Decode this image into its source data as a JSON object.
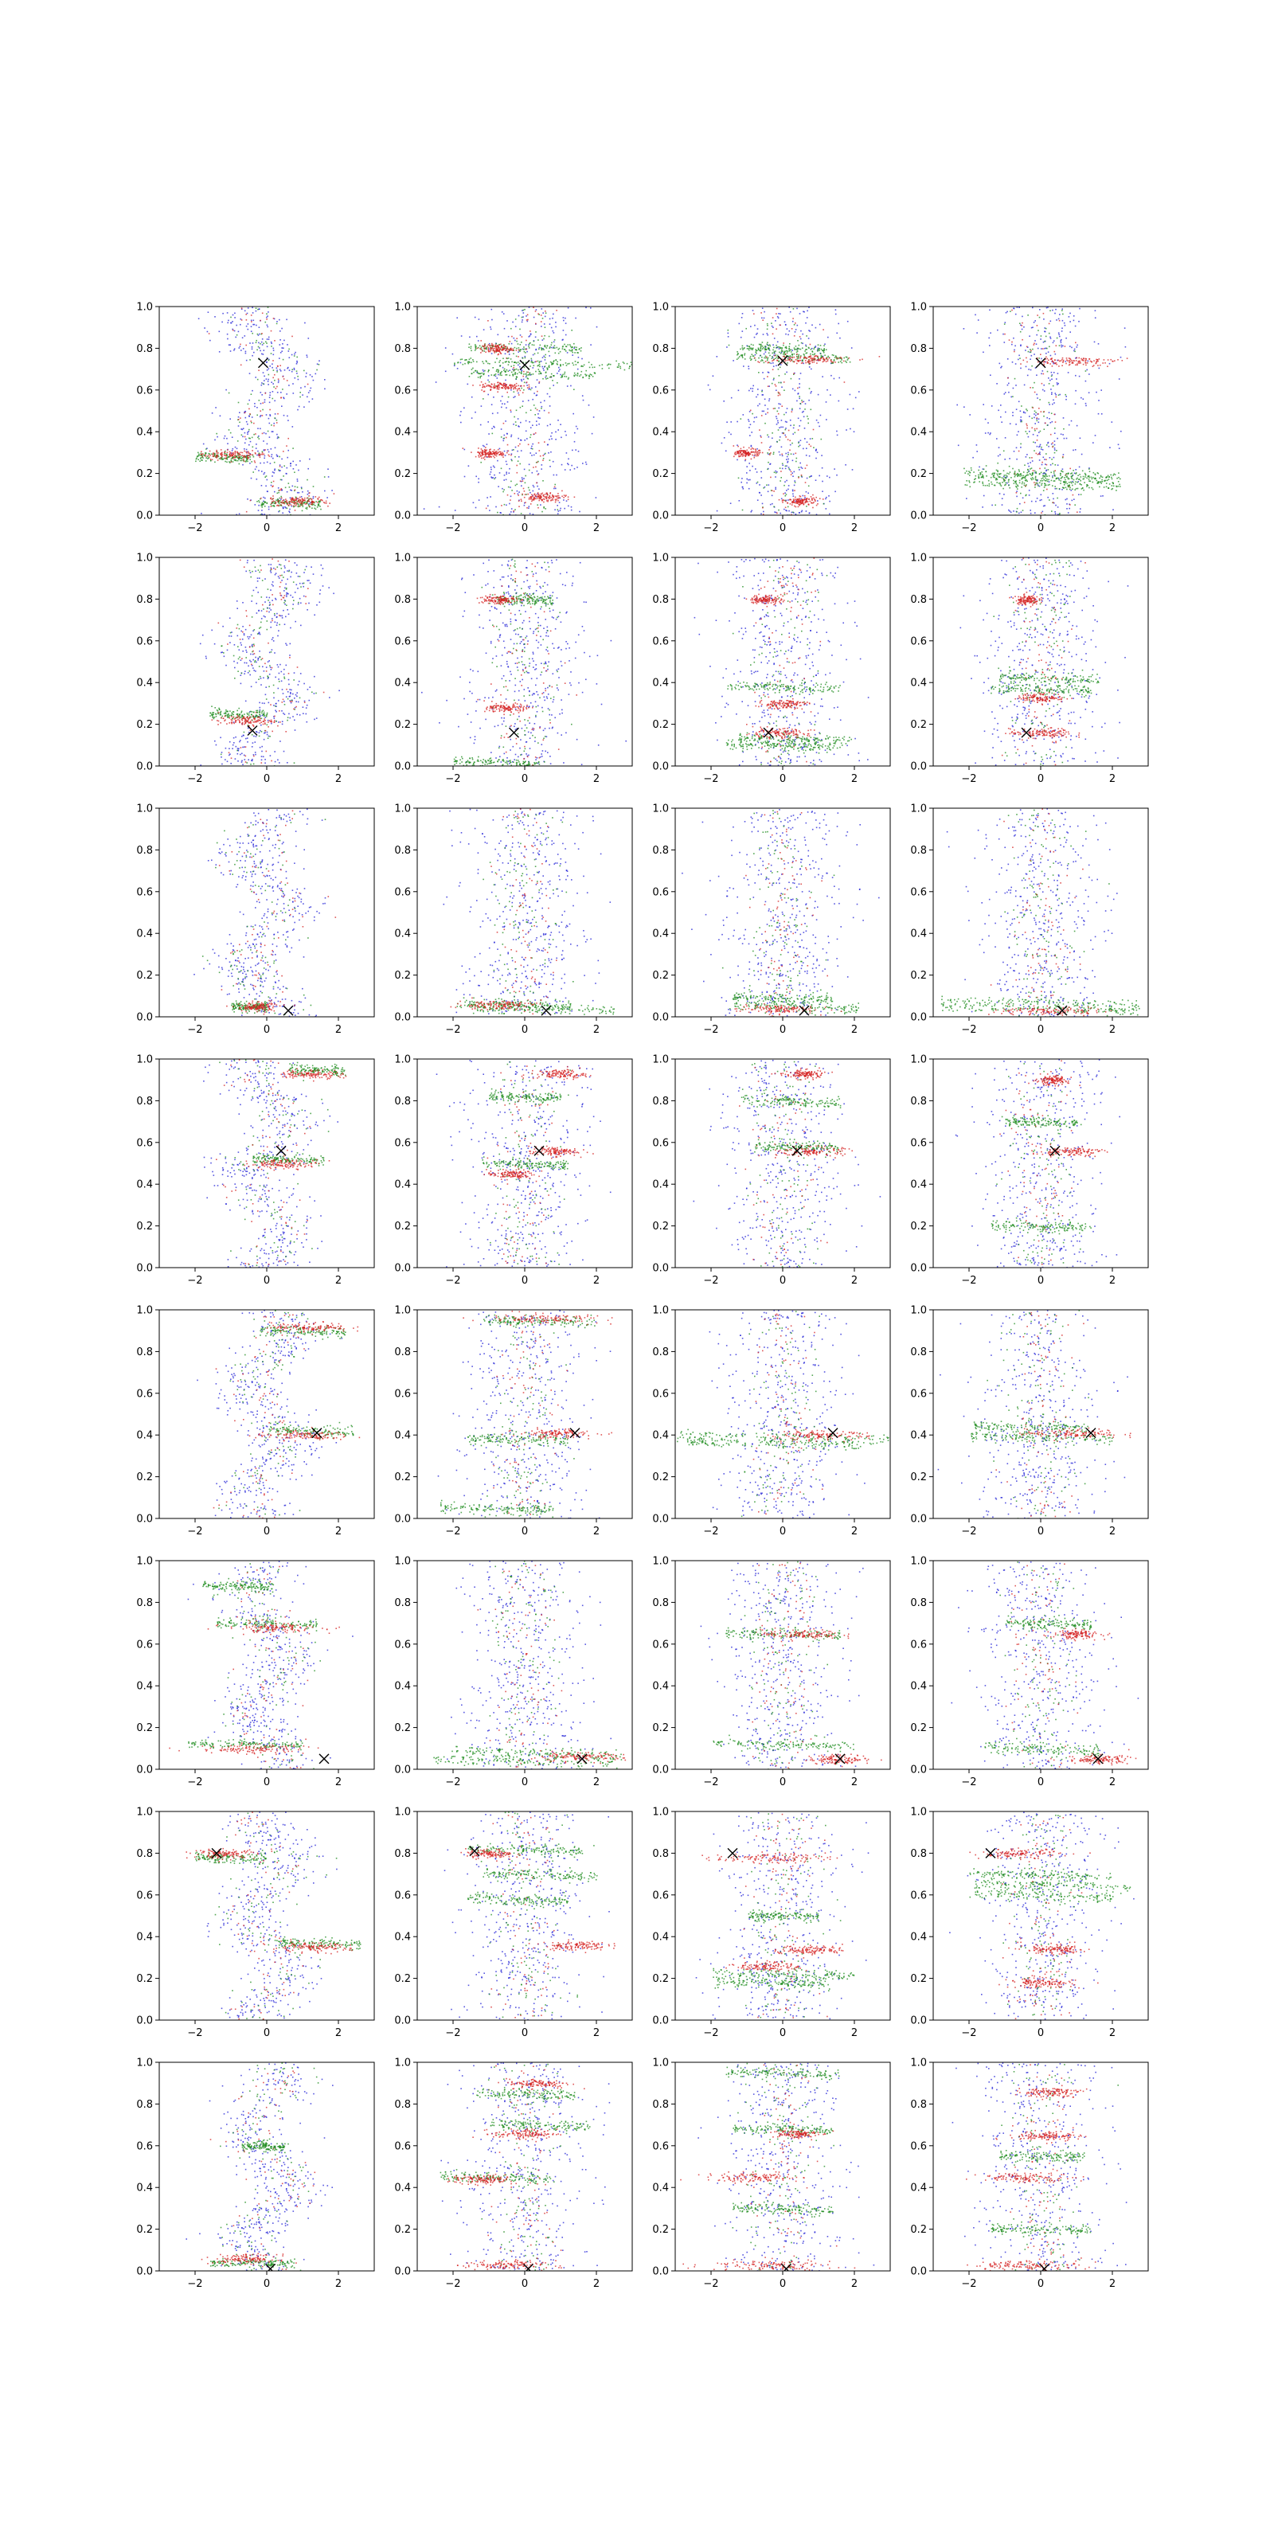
{
  "figure": {
    "rows": 8,
    "cols": 4,
    "description_note": "Grid of scatter subplots; each shows blue, green and red point clouds with a black X marker."
  },
  "colors": {
    "blue": "#1f1fd6",
    "green": "#1a8a1a",
    "red": "#d42020",
    "marker": "#000000",
    "axis": "#000000",
    "background": "#ffffff"
  },
  "chart_data": {
    "type": "scatter",
    "xlim": [
      -3,
      3
    ],
    "ylim": [
      0,
      1
    ],
    "xticks": [
      -2,
      0,
      2
    ],
    "xtick_labels": [
      "−2",
      "0",
      "2"
    ],
    "yticks": [
      0,
      0.2,
      0.4,
      0.6,
      0.8,
      1.0
    ],
    "ytick_labels": [
      "0.0",
      "0.2",
      "0.4",
      "0.6",
      "0.8",
      "1.0"
    ],
    "series_names": [
      "blue",
      "green",
      "red"
    ],
    "panels": [
      {
        "row": 0,
        "col": 0,
        "marker": [
          -0.1,
          0.73
        ],
        "green_bands": [
          [
            0.28,
            -1.2,
            0.8
          ],
          [
            0.06,
            0.6,
            0.9
          ]
        ],
        "red_bands": [
          [
            0.29,
            -1.0,
            0.8
          ],
          [
            0.07,
            0.8,
            0.8
          ]
        ],
        "blue": "mix",
        "sine": true
      },
      {
        "row": 0,
        "col": 1,
        "marker": [
          0.0,
          0.72
        ],
        "green_bands": [
          [
            0.73,
            0.5,
            2.5
          ],
          [
            0.8,
            0.0,
            1.6
          ],
          [
            0.68,
            0.2,
            1.8
          ]
        ],
        "red_bands": [
          [
            0.62,
            -0.6,
            0.6
          ],
          [
            0.3,
            -1.0,
            0.4
          ],
          [
            0.09,
            0.5,
            0.6
          ],
          [
            0.8,
            -0.8,
            0.4
          ]
        ],
        "blue": "mix"
      },
      {
        "row": 0,
        "col": 2,
        "marker": [
          0.0,
          0.74
        ],
        "green_bands": [
          [
            0.8,
            0.0,
            1.2
          ],
          [
            0.76,
            0.3,
            1.6
          ]
        ],
        "red_bands": [
          [
            0.75,
            0.5,
            1.2
          ],
          [
            0.3,
            -1.0,
            0.3
          ],
          [
            0.07,
            0.5,
            0.4
          ]
        ],
        "blue": "mix"
      },
      {
        "row": 0,
        "col": 3,
        "marker": [
          0.0,
          0.73
        ],
        "green_bands": [
          [
            0.2,
            0.0,
            2.2
          ],
          [
            0.15,
            0.0,
            2.2
          ],
          [
            0.18,
            0.2,
            2.0
          ]
        ],
        "red_bands": [
          [
            0.74,
            0.8,
            1.2
          ]
        ],
        "blue": "mix"
      },
      {
        "row": 1,
        "col": 0,
        "marker": [
          -0.4,
          0.17
        ],
        "green_bands": [
          [
            0.25,
            -0.8,
            0.8
          ]
        ],
        "red_bands": [
          [
            0.22,
            -0.6,
            0.7
          ]
        ],
        "blue": "mix",
        "sine": true
      },
      {
        "row": 1,
        "col": 1,
        "marker": [
          -0.3,
          0.16
        ],
        "green_bands": [
          [
            0.02,
            -0.8,
            1.2
          ],
          [
            0.8,
            0.0,
            0.8
          ]
        ],
        "red_bands": [
          [
            0.8,
            -0.8,
            0.5
          ],
          [
            0.28,
            -0.5,
            0.5
          ]
        ],
        "blue": "mix",
        "vertical": true
      },
      {
        "row": 1,
        "col": 2,
        "marker": [
          -0.4,
          0.16
        ],
        "green_bands": [
          [
            0.13,
            0.3,
            1.6
          ],
          [
            0.38,
            0.0,
            1.6
          ],
          [
            0.1,
            0.0,
            1.6
          ]
        ],
        "red_bands": [
          [
            0.8,
            -0.5,
            0.4
          ],
          [
            0.3,
            0.0,
            0.6
          ],
          [
            0.16,
            -0.2,
            0.8
          ]
        ],
        "blue": "mix",
        "vertical": true
      },
      {
        "row": 1,
        "col": 3,
        "marker": [
          -0.4,
          0.16
        ],
        "green_bands": [
          [
            0.42,
            0.2,
            1.4
          ],
          [
            0.37,
            0.0,
            1.4
          ]
        ],
        "red_bands": [
          [
            0.16,
            0.0,
            0.8
          ],
          [
            0.33,
            0.0,
            0.6
          ],
          [
            0.8,
            -0.4,
            0.3
          ]
        ],
        "blue": "mix",
        "vertical": true
      },
      {
        "row": 2,
        "col": 0,
        "marker": [
          0.6,
          0.03
        ],
        "green_bands": [
          [
            0.05,
            -0.5,
            0.5
          ]
        ],
        "red_bands": [
          [
            0.05,
            -0.3,
            0.5
          ]
        ],
        "blue": "mix",
        "sine": true
      },
      {
        "row": 2,
        "col": 1,
        "marker": [
          0.6,
          0.03
        ],
        "green_bands": [
          [
            0.04,
            0.5,
            2.0
          ],
          [
            0.06,
            -0.3,
            1.6
          ]
        ],
        "red_bands": [
          [
            0.06,
            -0.8,
            1.0
          ]
        ],
        "blue": "mix"
      },
      {
        "row": 2,
        "col": 2,
        "marker": [
          0.6,
          0.03
        ],
        "green_bands": [
          [
            0.05,
            0.3,
            1.8
          ],
          [
            0.09,
            0.0,
            1.4
          ]
        ],
        "red_bands": [
          [
            0.04,
            -0.2,
            1.0
          ]
        ],
        "blue": "mix"
      },
      {
        "row": 2,
        "col": 3,
        "marker": [
          0.6,
          0.03
        ],
        "green_bands": [
          [
            0.07,
            0.0,
            2.8
          ],
          [
            0.04,
            0.0,
            2.8
          ]
        ],
        "red_bands": [
          [
            0.03,
            0.3,
            1.4
          ]
        ],
        "blue": "mix"
      },
      {
        "row": 3,
        "col": 0,
        "marker": [
          0.4,
          0.56
        ],
        "green_bands": [
          [
            0.52,
            0.6,
            1.0
          ],
          [
            0.95,
            1.4,
            0.8
          ]
        ],
        "red_bands": [
          [
            0.5,
            0.5,
            0.9
          ],
          [
            0.93,
            1.2,
            0.8
          ]
        ],
        "blue": "mix",
        "sine": true
      },
      {
        "row": 3,
        "col": 1,
        "marker": [
          0.4,
          0.56
        ],
        "green_bands": [
          [
            0.5,
            0.0,
            1.2
          ],
          [
            0.82,
            0.0,
            1.0
          ]
        ],
        "red_bands": [
          [
            0.93,
            1.0,
            0.6
          ],
          [
            0.56,
            0.8,
            0.6
          ],
          [
            0.45,
            -0.4,
            0.6
          ]
        ],
        "blue": "mix",
        "vertical": true
      },
      {
        "row": 3,
        "col": 2,
        "marker": [
          0.4,
          0.56
        ],
        "green_bands": [
          [
            0.58,
            0.4,
            1.2
          ],
          [
            0.8,
            0.2,
            1.4
          ]
        ],
        "red_bands": [
          [
            0.56,
            0.8,
            0.8
          ],
          [
            0.93,
            0.6,
            0.5
          ]
        ],
        "blue": "mix",
        "vertical": true
      },
      {
        "row": 3,
        "col": 3,
        "marker": [
          0.4,
          0.56
        ],
        "green_bands": [
          [
            0.2,
            0.0,
            1.4
          ],
          [
            0.7,
            0.0,
            1.0
          ]
        ],
        "red_bands": [
          [
            0.56,
            0.8,
            0.8
          ],
          [
            0.9,
            0.3,
            0.4
          ]
        ],
        "blue": "mix",
        "vertical": true
      },
      {
        "row": 4,
        "col": 0,
        "marker": [
          1.4,
          0.41
        ],
        "green_bands": [
          [
            0.42,
            1.2,
            1.2
          ],
          [
            0.9,
            1.0,
            1.2
          ]
        ],
        "red_bands": [
          [
            0.4,
            1.0,
            1.2
          ],
          [
            0.92,
            1.2,
            1.0
          ]
        ],
        "blue": "mix",
        "sine": true
      },
      {
        "row": 4,
        "col": 1,
        "marker": [
          1.4,
          0.41
        ],
        "green_bands": [
          [
            0.95,
            0.4,
            1.6
          ],
          [
            0.38,
            -0.2,
            1.4
          ],
          [
            0.05,
            -0.8,
            1.6
          ]
        ],
        "red_bands": [
          [
            0.96,
            0.6,
            1.4
          ],
          [
            0.41,
            0.9,
            1.0
          ]
        ],
        "blue": "mix"
      },
      {
        "row": 4,
        "col": 2,
        "marker": [
          1.4,
          0.41
        ],
        "green_bands": [
          [
            0.39,
            0.0,
            3.0
          ],
          [
            0.36,
            -0.4,
            2.6
          ]
        ],
        "red_bands": [
          [
            0.4,
            1.0,
            1.2
          ]
        ],
        "blue": "mix"
      },
      {
        "row": 4,
        "col": 3,
        "marker": [
          1.4,
          0.41
        ],
        "green_bands": [
          [
            0.39,
            0.0,
            2.0
          ],
          [
            0.44,
            -0.3,
            1.6
          ]
        ],
        "red_bands": [
          [
            0.41,
            0.9,
            1.2
          ]
        ],
        "blue": "mix",
        "vertical": true
      },
      {
        "row": 5,
        "col": 0,
        "marker": [
          1.6,
          0.05
        ],
        "green_bands": [
          [
            0.12,
            -0.6,
            1.6
          ],
          [
            0.7,
            0.0,
            1.4
          ],
          [
            0.88,
            -0.8,
            1.0
          ]
        ],
        "red_bands": [
          [
            0.1,
            -0.4,
            1.4
          ],
          [
            0.68,
            0.2,
            1.2
          ]
        ],
        "blue": "mix",
        "sine": true
      },
      {
        "row": 5,
        "col": 1,
        "marker": [
          1.6,
          0.05
        ],
        "green_bands": [
          [
            0.08,
            0.3,
            2.4
          ],
          [
            0.04,
            0.0,
            2.6
          ]
        ],
        "red_bands": [
          [
            0.06,
            1.4,
            1.2
          ]
        ],
        "blue": "mix"
      },
      {
        "row": 5,
        "col": 2,
        "marker": [
          1.6,
          0.05
        ],
        "green_bands": [
          [
            0.65,
            0.0,
            1.6
          ],
          [
            0.12,
            0.0,
            2.0
          ]
        ],
        "red_bands": [
          [
            0.65,
            0.5,
            1.0
          ],
          [
            0.05,
            1.6,
            0.8
          ]
        ],
        "blue": "mix"
      },
      {
        "row": 5,
        "col": 3,
        "marker": [
          1.6,
          0.05
        ],
        "green_bands": [
          [
            0.1,
            0.0,
            1.6
          ],
          [
            0.7,
            0.2,
            1.2
          ]
        ],
        "red_bands": [
          [
            0.05,
            1.6,
            0.8
          ],
          [
            0.65,
            1.0,
            0.6
          ]
        ],
        "blue": "mix",
        "vertical": true
      },
      {
        "row": 6,
        "col": 0,
        "marker": [
          -1.4,
          0.8
        ],
        "green_bands": [
          [
            0.37,
            1.4,
            1.2
          ],
          [
            0.78,
            -1.0,
            1.0
          ]
        ],
        "red_bands": [
          [
            0.35,
            1.2,
            1.0
          ],
          [
            0.8,
            -1.2,
            0.8
          ]
        ],
        "blue": "mix",
        "sine": true
      },
      {
        "row": 6,
        "col": 1,
        "marker": [
          -1.4,
          0.81
        ],
        "green_bands": [
          [
            0.82,
            0.0,
            1.6
          ],
          [
            0.58,
            -0.2,
            1.4
          ],
          [
            0.7,
            0.4,
            1.6
          ]
        ],
        "red_bands": [
          [
            0.36,
            1.4,
            0.8
          ],
          [
            0.8,
            -1.0,
            0.6
          ]
        ],
        "blue": "mix"
      },
      {
        "row": 6,
        "col": 2,
        "marker": [
          -1.4,
          0.8
        ],
        "green_bands": [
          [
            0.22,
            0.0,
            2.0
          ],
          [
            0.18,
            -0.3,
            1.6
          ],
          [
            0.5,
            0.0,
            1.0
          ]
        ],
        "red_bands": [
          [
            0.78,
            -0.4,
            1.4
          ],
          [
            0.34,
            0.8,
            0.8
          ],
          [
            0.26,
            -0.4,
            0.8
          ]
        ],
        "blue": "mix"
      },
      {
        "row": 6,
        "col": 3,
        "marker": [
          -1.4,
          0.8
        ],
        "green_bands": [
          [
            0.65,
            0.3,
            2.2
          ],
          [
            0.7,
            0.0,
            2.0
          ],
          [
            0.6,
            0.0,
            2.0
          ]
        ],
        "red_bands": [
          [
            0.8,
            -0.6,
            1.0
          ],
          [
            0.34,
            0.4,
            0.8
          ],
          [
            0.18,
            0.0,
            0.8
          ]
        ],
        "blue": "mix",
        "vertical": true
      },
      {
        "row": 7,
        "col": 0,
        "marker": [
          0.1,
          0.01
        ],
        "green_bands": [
          [
            0.04,
            -0.4,
            1.2
          ],
          [
            0.6,
            -0.1,
            0.6
          ]
        ],
        "red_bands": [
          [
            0.06,
            -0.6,
            0.8
          ]
        ],
        "blue": "mix",
        "sine": true
      },
      {
        "row": 7,
        "col": 1,
        "marker": [
          0.1,
          0.01
        ],
        "green_bands": [
          [
            0.45,
            -0.8,
            1.6
          ],
          [
            0.85,
            0.0,
            1.4
          ],
          [
            0.7,
            0.4,
            1.4
          ]
        ],
        "red_bands": [
          [
            0.44,
            -1.2,
            0.8
          ],
          [
            0.03,
            -0.6,
            1.0
          ],
          [
            0.66,
            0.0,
            0.8
          ],
          [
            0.9,
            0.4,
            0.8
          ]
        ],
        "blue": "mix",
        "vertical": true
      },
      {
        "row": 7,
        "col": 2,
        "marker": [
          0.1,
          0.01
        ],
        "green_bands": [
          [
            0.95,
            0.0,
            1.6
          ],
          [
            0.68,
            0.0,
            1.4
          ],
          [
            0.3,
            0.0,
            1.4
          ]
        ],
        "red_bands": [
          [
            0.45,
            -0.8,
            1.2
          ],
          [
            0.03,
            -0.4,
            1.6
          ],
          [
            0.66,
            0.3,
            0.6
          ]
        ],
        "blue": "mix",
        "vertical": true
      },
      {
        "row": 7,
        "col": 3,
        "marker": [
          0.1,
          0.01
        ],
        "green_bands": [
          [
            0.2,
            0.0,
            1.4
          ],
          [
            0.55,
            0.0,
            1.2
          ]
        ],
        "red_bands": [
          [
            0.45,
            -0.4,
            1.2
          ],
          [
            0.03,
            -0.4,
            1.4
          ],
          [
            0.65,
            0.2,
            0.8
          ],
          [
            0.86,
            0.2,
            0.8
          ]
        ],
        "blue": "mix",
        "vertical": true
      }
    ]
  }
}
